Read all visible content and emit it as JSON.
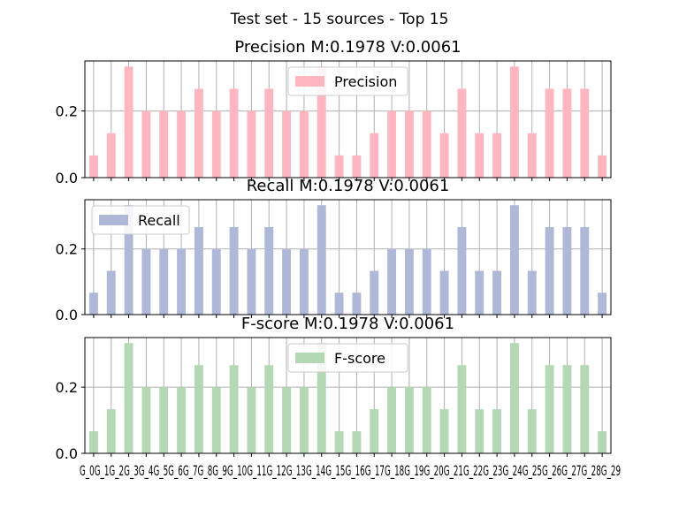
{
  "figure": {
    "suptitle": "Test set - 15 sources - Top 15"
  },
  "chart_data": [
    {
      "type": "bar",
      "title": "Precision M:0.1978 V:0.0061",
      "legend": "top-center",
      "series": [
        {
          "name": "Precision",
          "color": "#FFB6C1",
          "values": [
            0.0667,
            0.1333,
            0.3333,
            0.2,
            0.2,
            0.2,
            0.2667,
            0.2,
            0.2667,
            0.2,
            0.2667,
            0.2,
            0.2,
            0.3333,
            0.0667,
            0.0667,
            0.1333,
            0.2,
            0.2,
            0.2,
            0.1333,
            0.2667,
            0.1333,
            0.1333,
            0.3333,
            0.1333,
            0.2667,
            0.2667,
            0.2667,
            0.0667
          ]
        }
      ],
      "ylim": [
        0,
        0.35
      ],
      "yticks": [
        0.0,
        0.2
      ],
      "ytick_labels": [
        "0.0",
        "0.2"
      ],
      "grid": true,
      "xlabel": "",
      "ylabel": ""
    },
    {
      "type": "bar",
      "title": "Recall M:0.1978 V:0.0061",
      "legend": "top-left",
      "series": [
        {
          "name": "Recall",
          "color": "#B0B8D8",
          "values": [
            0.0667,
            0.1333,
            0.3333,
            0.2,
            0.2,
            0.2,
            0.2667,
            0.2,
            0.2667,
            0.2,
            0.2667,
            0.2,
            0.2,
            0.3333,
            0.0667,
            0.0667,
            0.1333,
            0.2,
            0.2,
            0.2,
            0.1333,
            0.2667,
            0.1333,
            0.1333,
            0.3333,
            0.1333,
            0.2667,
            0.2667,
            0.2667,
            0.0667
          ]
        }
      ],
      "ylim": [
        0,
        0.35
      ],
      "yticks": [
        0.0,
        0.2
      ],
      "ytick_labels": [
        "0.0",
        "0.2"
      ],
      "grid": true,
      "xlabel": "",
      "ylabel": ""
    },
    {
      "type": "bar",
      "title": "F-score M:0.1978 V:0.0061",
      "legend": "top-center",
      "series": [
        {
          "name": "F-score",
          "color": "#B4D8B4",
          "values": [
            0.0667,
            0.1333,
            0.3333,
            0.2,
            0.2,
            0.2,
            0.2667,
            0.2,
            0.2667,
            0.2,
            0.2667,
            0.2,
            0.2,
            0.3333,
            0.0667,
            0.0667,
            0.1333,
            0.2,
            0.2,
            0.2,
            0.1333,
            0.2667,
            0.1333,
            0.1333,
            0.3333,
            0.1333,
            0.2667,
            0.2667,
            0.2667,
            0.0667
          ]
        }
      ],
      "ylim": [
        0,
        0.35
      ],
      "yticks": [
        0.0,
        0.2
      ],
      "ytick_labels": [
        "0.0",
        "0.2"
      ],
      "grid": true,
      "xlabel": "",
      "ylabel": ""
    }
  ],
  "x_tick_text": "G_0G_1G_2G_3G_4G_5G_6G_7G_8G_9G_10G_11G_12G_13G_14G_15G_16G_17G_18G_19G_20G_21G_22G_23G_24G_25G_26G_27G_28G_29"
}
